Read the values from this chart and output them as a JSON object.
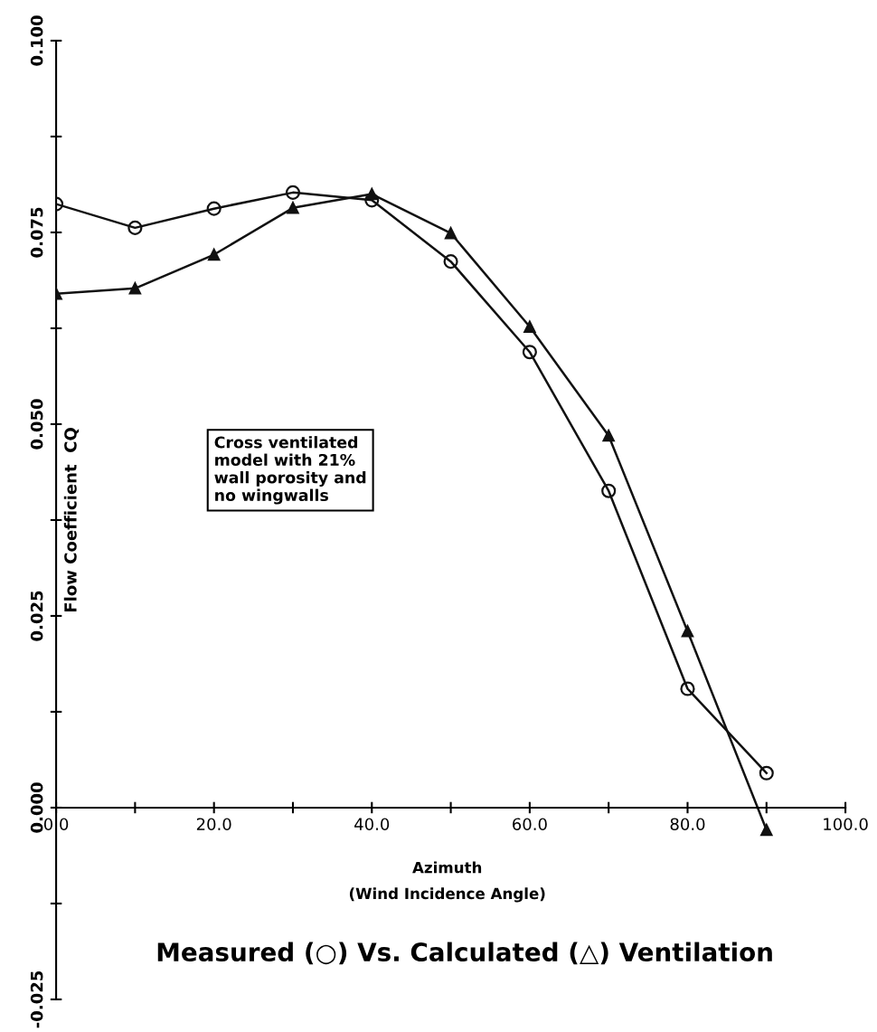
{
  "chart_data": {
    "type": "line",
    "title": "Measured (○) Vs. Calculated (△) Ventilation",
    "xlabel": "Azimuth\n(Wind Incidence Angle)",
    "ylabel": "Flow Coefficient  CQ",
    "annotations": [
      "Cross ventilated\nmodel with 21%\nwall porosity and\nno wingwalls"
    ],
    "x": [
      0,
      10,
      20,
      30,
      40,
      50,
      60,
      70,
      80,
      90
    ],
    "series": [
      {
        "color": "#111111",
        "marker": "circle",
        "values": [
          0.0787,
          0.0756,
          0.0781,
          0.0802,
          0.0792,
          0.0712,
          0.0594,
          0.0413,
          0.0155,
          0.0045
        ]
      },
      {
        "color": "#111111",
        "marker": "triangle",
        "values": [
          0.067,
          0.0677,
          0.0721,
          0.0782,
          0.08,
          0.0749,
          0.0627,
          0.0485,
          0.023,
          -0.0029
        ]
      }
    ],
    "xlim": [
      0,
      100
    ],
    "ylim": [
      -0.025,
      0.1
    ],
    "xticks": [
      {
        "value": 0,
        "label": "0.0"
      },
      {
        "value": 10,
        "label": null
      },
      {
        "value": 20,
        "label": "20.0"
      },
      {
        "value": 30,
        "label": null
      },
      {
        "value": 40,
        "label": "40.0"
      },
      {
        "value": 50,
        "label": null
      },
      {
        "value": 60,
        "label": "60.0"
      },
      {
        "value": 70,
        "label": null
      },
      {
        "value": 80,
        "label": "80.0"
      },
      {
        "value": 90,
        "label": null
      },
      {
        "value": 100,
        "label": "100.0"
      }
    ],
    "yticks": [
      {
        "value": -0.025,
        "label": "-0.025"
      },
      {
        "value": -0.0125,
        "label": null
      },
      {
        "value": 0,
        "label": "0.000"
      },
      {
        "value": 0.0125,
        "label": null
      },
      {
        "value": 0.025,
        "label": "0.025"
      },
      {
        "value": 0.0375,
        "label": null
      },
      {
        "value": 0.05,
        "label": "0.050"
      },
      {
        "value": 0.0625,
        "label": null
      },
      {
        "value": 0.075,
        "label": "0.075"
      },
      {
        "value": 0.0875,
        "label": null
      },
      {
        "value": 0.1,
        "label": "0.100"
      }
    ],
    "grid": false,
    "legend": false,
    "line_style": "solid"
  }
}
